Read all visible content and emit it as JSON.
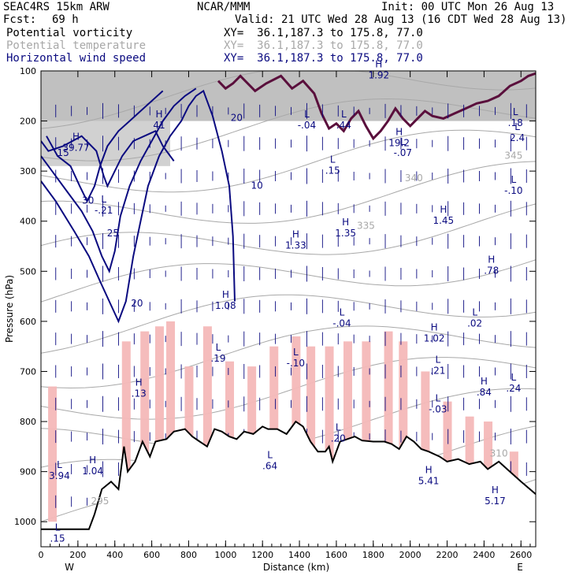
{
  "header": {
    "model": "SEAC4RS 15km ARW",
    "org": "NCAR/MMM",
    "init": "Init: 00 UTC Mon 26 Aug 13",
    "fcst_label": "Fcst:",
    "fcst_value": "69 h",
    "valid": "Valid: 21 UTC Wed 28 Aug 13 (16 CDT Wed 28 Aug 13)",
    "fields": [
      {
        "name": "Potential vorticity",
        "xy": "XY=  36.1,187.3 to 175.8, 77.0",
        "color": "#000000"
      },
      {
        "name": "Potential temperature",
        "xy": "XY=  36.1,187.3 to 175.8, 77.0",
        "color": "#a8a8a8"
      },
      {
        "name": "Horizontal wind speed",
        "xy": "XY=  36.1,187.3 to 175.8, 77.0",
        "color": "#0a0a80"
      }
    ]
  },
  "chart_data": {
    "type": "cross-section",
    "xlabel": "Distance (km)",
    "ylabel": "Pressure (hPa)",
    "xlim": [
      0,
      2680
    ],
    "ylim": [
      1050,
      100
    ],
    "x_ticks": [
      0,
      200,
      400,
      600,
      800,
      1000,
      1200,
      1400,
      1600,
      1800,
      2000,
      2200,
      2400,
      2600
    ],
    "y_ticks": [
      100,
      200,
      300,
      400,
      500,
      600,
      700,
      800,
      900,
      1000
    ],
    "endpoints": {
      "left": "W",
      "right": "E"
    },
    "terrain_profile": [
      [
        0,
        1015
      ],
      [
        120,
        1015
      ],
      [
        200,
        1015
      ],
      [
        260,
        1015
      ],
      [
        290,
        985
      ],
      [
        330,
        935
      ],
      [
        380,
        920
      ],
      [
        420,
        935
      ],
      [
        450,
        850
      ],
      [
        470,
        900
      ],
      [
        510,
        880
      ],
      [
        550,
        840
      ],
      [
        590,
        870
      ],
      [
        620,
        840
      ],
      [
        680,
        835
      ],
      [
        720,
        820
      ],
      [
        780,
        815
      ],
      [
        820,
        830
      ],
      [
        860,
        840
      ],
      [
        900,
        850
      ],
      [
        940,
        815
      ],
      [
        980,
        820
      ],
      [
        1020,
        830
      ],
      [
        1060,
        835
      ],
      [
        1100,
        820
      ],
      [
        1150,
        825
      ],
      [
        1200,
        810
      ],
      [
        1230,
        815
      ],
      [
        1280,
        815
      ],
      [
        1330,
        825
      ],
      [
        1380,
        800
      ],
      [
        1420,
        810
      ],
      [
        1460,
        840
      ],
      [
        1500,
        860
      ],
      [
        1540,
        860
      ],
      [
        1560,
        850
      ],
      [
        1580,
        880
      ],
      [
        1620,
        840
      ],
      [
        1660,
        835
      ],
      [
        1700,
        830
      ],
      [
        1740,
        838
      ],
      [
        1800,
        840
      ],
      [
        1860,
        840
      ],
      [
        1900,
        845
      ],
      [
        1940,
        855
      ],
      [
        1980,
        830
      ],
      [
        2020,
        840
      ],
      [
        2060,
        855
      ],
      [
        2100,
        860
      ],
      [
        2160,
        870
      ],
      [
        2200,
        880
      ],
      [
        2260,
        875
      ],
      [
        2320,
        885
      ],
      [
        2380,
        880
      ],
      [
        2420,
        895
      ],
      [
        2480,
        880
      ],
      [
        2540,
        900
      ],
      [
        2600,
        920
      ],
      [
        2680,
        945
      ]
    ],
    "wind_speed_contours": [
      {
        "value": 15,
        "points": [
          [
            0,
            240
          ],
          [
            40,
            260
          ],
          [
            120,
            250
          ],
          [
            220,
            230
          ],
          [
            300,
            260
          ],
          [
            340,
            310
          ],
          [
            360,
            330
          ],
          [
            400,
            300
          ],
          [
            440,
            270
          ],
          [
            500,
            240
          ],
          [
            560,
            230
          ],
          [
            620,
            220
          ],
          [
            660,
            250
          ],
          [
            720,
            280
          ]
        ]
      },
      {
        "value": 20,
        "points": [
          [
            0,
            320
          ],
          [
            80,
            360
          ],
          [
            180,
            420
          ],
          [
            260,
            470
          ],
          [
            320,
            520
          ],
          [
            370,
            560
          ],
          [
            420,
            600
          ],
          [
            460,
            560
          ],
          [
            500,
            470
          ],
          [
            540,
            400
          ],
          [
            580,
            330
          ],
          [
            640,
            270
          ],
          [
            700,
            230
          ],
          [
            760,
            200
          ],
          [
            800,
            170
          ],
          [
            840,
            150
          ],
          [
            880,
            140
          ],
          [
            930,
            190
          ],
          [
            980,
            260
          ],
          [
            1020,
            330
          ],
          [
            1040,
            430
          ],
          [
            1050,
            560
          ]
        ]
      },
      {
        "value": 25,
        "points": [
          [
            0,
            270
          ],
          [
            60,
            300
          ],
          [
            140,
            340
          ],
          [
            220,
            380
          ],
          [
            280,
            420
          ],
          [
            330,
            470
          ],
          [
            370,
            500
          ],
          [
            400,
            460
          ],
          [
            430,
            390
          ],
          [
            480,
            330
          ],
          [
            540,
            280
          ],
          [
            600,
            240
          ],
          [
            660,
            200
          ],
          [
            720,
            170
          ],
          [
            780,
            150
          ],
          [
            840,
            135
          ]
        ]
      },
      {
        "value": 30,
        "points": [
          [
            30,
            230
          ],
          [
            90,
            270
          ],
          [
            160,
            290
          ],
          [
            210,
            330
          ],
          [
            250,
            360
          ],
          [
            290,
            330
          ],
          [
            320,
            290
          ],
          [
            360,
            250
          ],
          [
            420,
            220
          ],
          [
            480,
            200
          ],
          [
            540,
            180
          ],
          [
            600,
            160
          ],
          [
            660,
            140
          ]
        ]
      }
    ],
    "pv_tropopause": [
      [
        960,
        120
      ],
      [
        1000,
        135
      ],
      [
        1040,
        125
      ],
      [
        1080,
        110
      ],
      [
        1160,
        140
      ],
      [
        1220,
        125
      ],
      [
        1300,
        110
      ],
      [
        1360,
        135
      ],
      [
        1420,
        120
      ],
      [
        1480,
        145
      ],
      [
        1520,
        185
      ],
      [
        1560,
        215
      ],
      [
        1600,
        205
      ],
      [
        1640,
        220
      ],
      [
        1680,
        195
      ],
      [
        1720,
        180
      ],
      [
        1760,
        210
      ],
      [
        1800,
        235
      ],
      [
        1840,
        220
      ],
      [
        1880,
        200
      ],
      [
        1920,
        175
      ],
      [
        1960,
        195
      ],
      [
        2000,
        210
      ],
      [
        2040,
        195
      ],
      [
        2080,
        180
      ],
      [
        2120,
        190
      ],
      [
        2180,
        195
      ],
      [
        2240,
        185
      ],
      [
        2300,
        175
      ],
      [
        2360,
        165
      ],
      [
        2420,
        160
      ],
      [
        2480,
        150
      ],
      [
        2540,
        130
      ],
      [
        2600,
        120
      ],
      [
        2640,
        110
      ],
      [
        2680,
        105
      ]
    ],
    "contour_labels": [
      {
        "text": "30",
        "x": 255,
        "y": 365,
        "color": "#0a0a80"
      },
      {
        "text": "25",
        "x": 390,
        "y": 430,
        "color": "#0a0a80"
      },
      {
        "text": "20",
        "x": 520,
        "y": 570,
        "color": "#0a0a80"
      },
      {
        "text": "20",
        "x": 1060,
        "y": 200,
        "color": "#0a0a80"
      },
      {
        "text": "15",
        "x": 120,
        "y": 270,
        "color": "#0a0a80"
      },
      {
        "text": "10",
        "x": 1170,
        "y": 335,
        "color": "#0a0a80"
      },
      {
        "text": "340",
        "x": 2020,
        "y": 320,
        "color": "#a8a8a8"
      },
      {
        "text": "335",
        "x": 1760,
        "y": 415,
        "color": "#a8a8a8"
      },
      {
        "text": "345",
        "x": 2560,
        "y": 275,
        "color": "#a8a8a8"
      },
      {
        "text": "310",
        "x": 2480,
        "y": 870,
        "color": "#a8a8a8"
      },
      {
        "text": "295",
        "x": 320,
        "y": 965,
        "color": "#a8a8a8"
      }
    ],
    "extrema": [
      {
        "type": "H",
        "value": "1.08",
        "x": 1000,
        "y": 575
      },
      {
        "type": "H",
        "value": "1.33",
        "x": 1380,
        "y": 455
      },
      {
        "type": "H",
        "value": "1.35",
        "x": 1650,
        "y": 430
      },
      {
        "type": "H",
        "value": "1.45",
        "x": 2180,
        "y": 405
      },
      {
        "type": "H",
        "value": ".78",
        "x": 2440,
        "y": 505
      },
      {
        "type": "L",
        "value": ".02",
        "x": 2350,
        "y": 610
      },
      {
        "type": "L",
        "value": "-.04",
        "x": 1630,
        "y": 610
      },
      {
        "type": "H",
        "value": "1.02",
        "x": 2130,
        "y": 640
      },
      {
        "type": "L",
        "value": ".21",
        "x": 2150,
        "y": 705
      },
      {
        "type": "L",
        "value": ".19",
        "x": 960,
        "y": 680
      },
      {
        "type": "L",
        "value": "-.10",
        "x": 1380,
        "y": 690
      },
      {
        "type": "H",
        "value": ".84",
        "x": 2400,
        "y": 748
      },
      {
        "type": "L",
        "value": ".24",
        "x": 2560,
        "y": 740
      },
      {
        "type": "L",
        "value": "-.03",
        "x": 2150,
        "y": 782
      },
      {
        "type": "L",
        "value": ".20",
        "x": 1610,
        "y": 840
      },
      {
        "type": "H",
        "value": ".13",
        "x": 530,
        "y": 750
      },
      {
        "type": "L",
        "value": ".64",
        "x": 1240,
        "y": 895
      },
      {
        "type": "H",
        "value": "1.04",
        "x": 280,
        "y": 905
      },
      {
        "type": "L",
        "value": "3.94",
        "x": 100,
        "y": 915
      },
      {
        "type": "H",
        "value": "5.41",
        "x": 2100,
        "y": 925
      },
      {
        "type": "H",
        "value": "5.17",
        "x": 2460,
        "y": 965
      },
      {
        "type": "L",
        "value": "-.04",
        "x": 1440,
        "y": 215
      },
      {
        "type": "L",
        "value": ".44",
        "x": 1640,
        "y": 215
      },
      {
        "type": "H",
        "value": "19.2",
        "x": 1940,
        "y": 250
      },
      {
        "type": "L",
        "value": "-.07",
        "x": 1960,
        "y": 270
      },
      {
        "type": "L",
        "value": ".15",
        "x": 1580,
        "y": 305
      },
      {
        "type": "H",
        "value": "41",
        "x": 640,
        "y": 215
      },
      {
        "type": "H",
        "value": "39.77",
        "x": 190,
        "y": 260
      },
      {
        "type": "L",
        "value": "-.21",
        "x": 340,
        "y": 385
      },
      {
        "type": "L",
        "value": ".18",
        "x": 2570,
        "y": 210
      },
      {
        "type": "L",
        "value": "2.4",
        "x": 2580,
        "y": 240
      },
      {
        "type": "L",
        "value": "-.10",
        "x": 2560,
        "y": 345
      },
      {
        "type": "H",
        "value": "1.92",
        "x": 1830,
        "y": 115
      },
      {
        "type": "L",
        "value": ".15",
        "x": 90,
        "y": 1040
      }
    ]
  },
  "colors": {
    "pv_dark": "#5a0f3c",
    "wind": "#0a0a80",
    "theta": "#a8a8a8",
    "shading": "#f4b8b8"
  }
}
